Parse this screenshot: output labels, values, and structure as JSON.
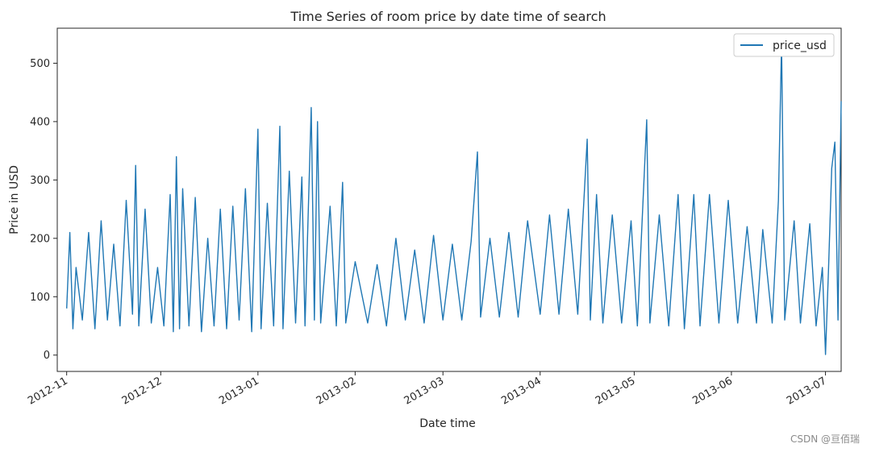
{
  "chart_data": {
    "type": "line",
    "title": "Time Series of room price by date time of search",
    "xlabel": "Date time",
    "ylabel": "Price in USD",
    "x_ticks": [
      "2012-11",
      "2012-12",
      "2013-01",
      "2013-02",
      "2013-03",
      "2013-04",
      "2013-05",
      "2013-06",
      "2013-07"
    ],
    "y_ticks": [
      "0",
      "100",
      "200",
      "300",
      "400",
      "500"
    ],
    "xlim": [
      "2012-10-29",
      "2013-07-06"
    ],
    "ylim": [
      -28,
      560
    ],
    "legend": {
      "position": "top-right",
      "entries": [
        "price_usd"
      ]
    },
    "grid": false,
    "series": [
      {
        "name": "price_usd",
        "color": "#1f77b4",
        "points": [
          [
            "2012-11-01",
            80
          ],
          [
            "2012-11-02",
            210
          ],
          [
            "2012-11-03",
            45
          ],
          [
            "2012-11-04",
            150
          ],
          [
            "2012-11-06",
            60
          ],
          [
            "2012-11-08",
            210
          ],
          [
            "2012-11-10",
            45
          ],
          [
            "2012-11-12",
            230
          ],
          [
            "2012-11-14",
            60
          ],
          [
            "2012-11-16",
            190
          ],
          [
            "2012-11-18",
            50
          ],
          [
            "2012-11-20",
            265
          ],
          [
            "2012-11-22",
            70
          ],
          [
            "2012-11-23",
            325
          ],
          [
            "2012-11-24",
            50
          ],
          [
            "2012-11-26",
            250
          ],
          [
            "2012-11-28",
            55
          ],
          [
            "2012-11-30",
            150
          ],
          [
            "2012-12-02",
            50
          ],
          [
            "2012-12-04",
            275
          ],
          [
            "2012-12-05",
            40
          ],
          [
            "2012-12-06",
            340
          ],
          [
            "2012-12-07",
            45
          ],
          [
            "2012-12-08",
            285
          ],
          [
            "2012-12-10",
            50
          ],
          [
            "2012-12-12",
            270
          ],
          [
            "2012-12-14",
            40
          ],
          [
            "2012-12-16",
            200
          ],
          [
            "2012-12-18",
            50
          ],
          [
            "2012-12-20",
            250
          ],
          [
            "2012-12-22",
            45
          ],
          [
            "2012-12-24",
            255
          ],
          [
            "2012-12-26",
            60
          ],
          [
            "2012-12-28",
            285
          ],
          [
            "2012-12-30",
            40
          ],
          [
            "2013-01-01",
            387
          ],
          [
            "2013-01-02",
            45
          ],
          [
            "2013-01-04",
            260
          ],
          [
            "2013-01-06",
            50
          ],
          [
            "2013-01-08",
            392
          ],
          [
            "2013-01-09",
            45
          ],
          [
            "2013-01-11",
            315
          ],
          [
            "2013-01-13",
            55
          ],
          [
            "2013-01-15",
            305
          ],
          [
            "2013-01-16",
            50
          ],
          [
            "2013-01-18",
            424
          ],
          [
            "2013-01-19",
            60
          ],
          [
            "2013-01-20",
            400
          ],
          [
            "2013-01-21",
            55
          ],
          [
            "2013-01-24",
            255
          ],
          [
            "2013-01-26",
            50
          ],
          [
            "2013-01-28",
            296
          ],
          [
            "2013-01-29",
            55
          ],
          [
            "2013-02-01",
            160
          ],
          [
            "2013-02-05",
            55
          ],
          [
            "2013-02-08",
            155
          ],
          [
            "2013-02-11",
            50
          ],
          [
            "2013-02-14",
            200
          ],
          [
            "2013-02-17",
            60
          ],
          [
            "2013-02-20",
            180
          ],
          [
            "2013-02-23",
            55
          ],
          [
            "2013-02-26",
            205
          ],
          [
            "2013-03-01",
            60
          ],
          [
            "2013-03-04",
            190
          ],
          [
            "2013-03-07",
            60
          ],
          [
            "2013-03-10",
            195
          ],
          [
            "2013-03-12",
            348
          ],
          [
            "2013-03-13",
            65
          ],
          [
            "2013-03-16",
            200
          ],
          [
            "2013-03-19",
            65
          ],
          [
            "2013-03-22",
            210
          ],
          [
            "2013-03-25",
            65
          ],
          [
            "2013-03-28",
            230
          ],
          [
            "2013-04-01",
            70
          ],
          [
            "2013-04-04",
            240
          ],
          [
            "2013-04-07",
            70
          ],
          [
            "2013-04-10",
            250
          ],
          [
            "2013-04-13",
            70
          ],
          [
            "2013-04-16",
            370
          ],
          [
            "2013-04-17",
            60
          ],
          [
            "2013-04-19",
            275
          ],
          [
            "2013-04-21",
            55
          ],
          [
            "2013-04-24",
            240
          ],
          [
            "2013-04-27",
            55
          ],
          [
            "2013-04-30",
            230
          ],
          [
            "2013-05-02",
            50
          ],
          [
            "2013-05-05",
            403
          ],
          [
            "2013-05-06",
            55
          ],
          [
            "2013-05-09",
            240
          ],
          [
            "2013-05-12",
            50
          ],
          [
            "2013-05-15",
            275
          ],
          [
            "2013-05-17",
            45
          ],
          [
            "2013-05-20",
            275
          ],
          [
            "2013-05-22",
            50
          ],
          [
            "2013-05-25",
            275
          ],
          [
            "2013-05-28",
            55
          ],
          [
            "2013-05-31",
            265
          ],
          [
            "2013-06-03",
            55
          ],
          [
            "2013-06-06",
            220
          ],
          [
            "2013-06-09",
            55
          ],
          [
            "2013-06-11",
            215
          ],
          [
            "2013-06-14",
            55
          ],
          [
            "2013-06-16",
            265
          ],
          [
            "2013-06-17",
            536
          ],
          [
            "2013-06-18",
            60
          ],
          [
            "2013-06-21",
            230
          ],
          [
            "2013-06-23",
            55
          ],
          [
            "2013-06-26",
            225
          ],
          [
            "2013-06-28",
            50
          ],
          [
            "2013-06-30",
            150
          ],
          [
            "2013-07-01",
            1
          ],
          [
            "2013-07-02",
            150
          ],
          [
            "2013-07-03",
            320
          ],
          [
            "2013-07-04",
            365
          ],
          [
            "2013-07-05",
            60
          ],
          [
            "2013-07-06",
            435
          ]
        ]
      }
    ]
  },
  "watermark": "CSDN @亘佰瑞"
}
